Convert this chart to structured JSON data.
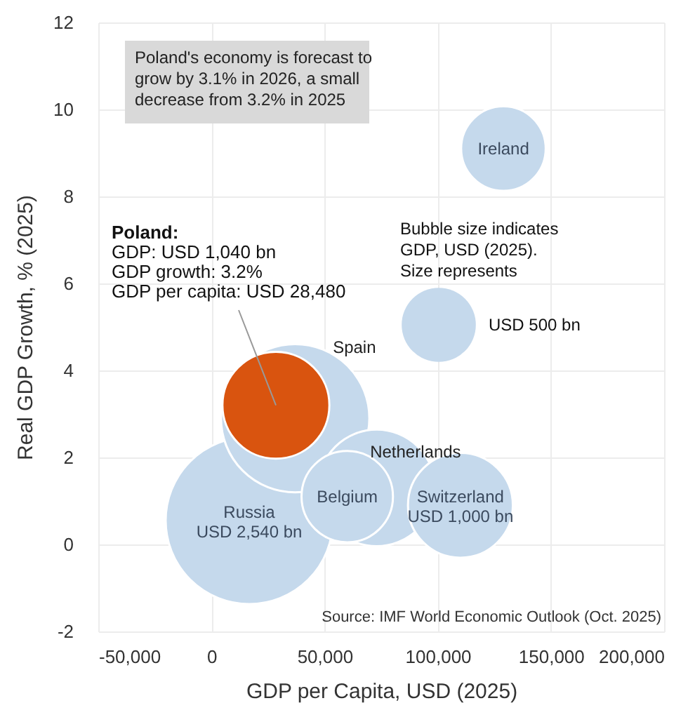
{
  "chart_data": {
    "type": "bubble",
    "xlabel": "GDP per Capita, USD (2025)",
    "ylabel": "Real GDP Growth, % (2025)",
    "xlim": [
      -50000,
      200000
    ],
    "ylim": [
      -2,
      12
    ],
    "xticks": [
      {
        "value": -50000,
        "label": "-50,000"
      },
      {
        "value": 0,
        "label": "0"
      },
      {
        "value": 50000,
        "label": "50,000"
      },
      {
        "value": 100000,
        "label": "100,000"
      },
      {
        "value": 150000,
        "label": "150,000"
      },
      {
        "value": 200000,
        "label": "200,000"
      }
    ],
    "yticks": [
      -2,
      0,
      2,
      4,
      6,
      8,
      10,
      12
    ],
    "grid": true,
    "legend": "right",
    "size_legend": [
      {
        "value": 500,
        "label": "USD 500 bn"
      }
    ],
    "legend_title": "Bubble size indicates\nGDP, USD (2025).\nSize represents",
    "series": [
      {
        "name": "Ireland",
        "color": "#c5d9ec",
        "x": [
          129000
        ],
        "values": [
          9.1
        ],
        "sizes": [
          650
        ]
      },
      {
        "name": "Russia",
        "color": "#c5d9ec",
        "x": [
          16700
        ],
        "values": [
          0.55
        ],
        "sizes": [
          2540
        ],
        "value_labels": [
          "USD 2,540 bn"
        ]
      },
      {
        "name": "Spain",
        "color": "#c5d9ec",
        "x": [
          37000
        ],
        "values": [
          2.9
        ],
        "sizes": [
          2000
        ]
      },
      {
        "name": "Netherlands",
        "color": "#c5d9ec",
        "x": [
          73000
        ],
        "values": [
          1.3
        ],
        "sizes": [
          1240
        ]
      },
      {
        "name": "Belgium",
        "color": "#c5d9ec",
        "x": [
          60000
        ],
        "values": [
          1.1
        ],
        "sizes": [
          760
        ]
      },
      {
        "name": "Switzerland",
        "color": "#c5d9ec",
        "x": [
          110000
        ],
        "values": [
          0.9
        ],
        "sizes": [
          1000
        ],
        "value_labels": [
          "USD 1,000 bn"
        ]
      },
      {
        "color": "#d9540f",
        "x": [
          28480
        ],
        "values": [
          3.2
        ],
        "sizes": [
          1040
        ]
      }
    ],
    "annotations": [
      "Poland's economy is forecast to grow by 3.1% in 2026, a small decrease from  3.2% in 2025",
      {
        "text": "Poland:\nGDP: USD 1,040 bn\nGDP growth: 3.2%\nGDP per capita: USD 28,480",
        "x": 28480,
        "y": 3.2
      },
      "Source: IMF World Economic Outlook (Oct. 2025)"
    ]
  }
}
